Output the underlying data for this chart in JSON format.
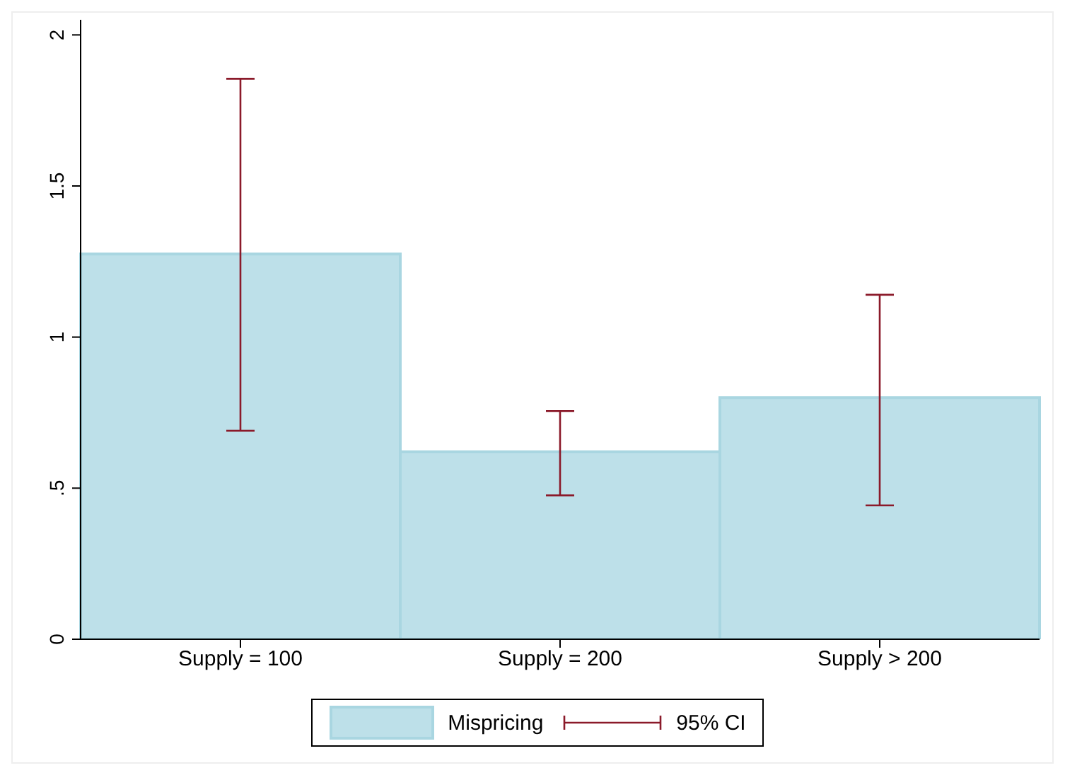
{
  "chart_data": {
    "type": "bar",
    "categories": [
      "Supply = 100",
      "Supply = 200",
      "Supply > 200"
    ],
    "series": [
      {
        "name": "Mispricing",
        "color": "#bde0e9",
        "values": [
          1.275,
          0.62,
          0.8
        ],
        "errors": [
          [
            0.69,
            1.855
          ],
          [
            0.476,
            0.755
          ],
          [
            0.443,
            1.14
          ]
        ]
      }
    ],
    "ylim": [
      0,
      2.05
    ],
    "yticks": [
      0,
      {
        "value": 0.5,
        "label": ".5"
      },
      1,
      1.5,
      2
    ],
    "legend": "bottom",
    "annotations": [
      "95% CI"
    ]
  }
}
